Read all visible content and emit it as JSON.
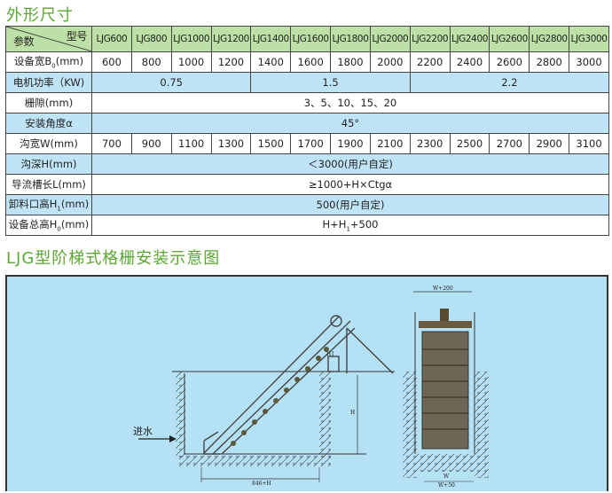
{
  "titles": {
    "dimensions": "外形尺寸",
    "install_diagram": "LJG型阶梯式格栅安装示意图"
  },
  "table": {
    "corner_top": "型号",
    "corner_bottom": "参数",
    "models": [
      "LJG600",
      "LJG800",
      "LJG1000",
      "LJG1200",
      "LJG1400",
      "LJG1600",
      "LJG1800",
      "LJG2000",
      "LJG2200",
      "LJG2400",
      "LJG2600",
      "LJG2800",
      "LJG3000"
    ],
    "rows": {
      "width_b0": {
        "label": "设备宽B",
        "sub": "0",
        "unit": "(mm)",
        "values": [
          "600",
          "800",
          "1000",
          "1200",
          "1400",
          "1600",
          "1800",
          "2000",
          "2200",
          "2400",
          "2600",
          "2800",
          "3000"
        ]
      },
      "motor_power": {
        "label": "电机功率（KW)",
        "values": [
          "0.75",
          "1.5",
          "2.2"
        ]
      },
      "bar_gap": {
        "label": "栅隙(mm)",
        "value": "3、5、10、15、20"
      },
      "install_angle": {
        "label": "安装角度α",
        "value": "45°"
      },
      "channel_width": {
        "label": "沟宽W(mm)",
        "values": [
          "700",
          "900",
          "1100",
          "1300",
          "1500",
          "1700",
          "1900",
          "2100",
          "2300",
          "2500",
          "2700",
          "2900",
          "3100"
        ]
      },
      "channel_depth": {
        "label": "沟深H(mm)",
        "value": "＜3000(用户自定)"
      },
      "guide_length": {
        "label": "导流槽长L(mm)",
        "value": "≥1000+H×Ctgα"
      },
      "discharge_height": {
        "label": "卸料口高H",
        "sub": "1",
        "unit": "(mm)",
        "value": "500(用户自定)"
      },
      "total_height": {
        "label": "设备总高H",
        "sub": "0",
        "unit": "(mm)",
        "value_pre": "H+H",
        "value_sub": "1",
        "value_post": "+500"
      }
    }
  },
  "diagram": {
    "inflow": "进水",
    "length_label": "846+H",
    "depth_label": "H",
    "h1_label": "H1",
    "top_width": "W+200",
    "bottom_width": "W",
    "base_width": "W+50"
  }
}
